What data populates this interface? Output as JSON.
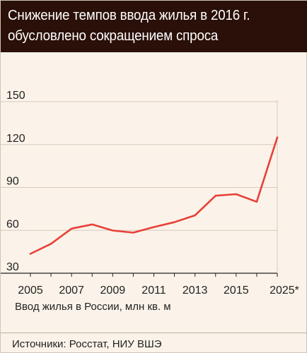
{
  "header": {
    "title": "Снижение темпов ввода жилья в 2016 г.\nобусловлено сокращением спроса"
  },
  "chart_data": {
    "type": "line",
    "title": "Снижение темпов ввода жилья в 2016 г. обусловлено сокращением спроса",
    "xlabel": "Ввод жилья в России, млн кв. м",
    "ylabel": "",
    "ylim": [
      30,
      150
    ],
    "y_ticks": [
      "30",
      "60",
      "90",
      "120",
      "150"
    ],
    "x_tick_labels": [
      "2005",
      "2007",
      "2009",
      "2011",
      "2013",
      "2015",
      "2025*"
    ],
    "grid": true,
    "legend": "none",
    "series": [
      {
        "x": [
          "2005",
          "2006",
          "2007",
          "2008",
          "2009",
          "2010",
          "2011",
          "2012",
          "2013",
          "2014",
          "2015",
          "2016",
          "2025*"
        ],
        "values": [
          43.6,
          50.6,
          61.2,
          64.1,
          59.9,
          58.4,
          62.3,
          65.7,
          70.5,
          84.2,
          85.3,
          80.0,
          125.0
        ]
      }
    ],
    "colors": {
      "line": "#e8403a",
      "grid": "#d6cabd",
      "axis": "#222222"
    }
  },
  "footer": {
    "source": "Источники: Росстат, НИУ ВШЭ"
  }
}
